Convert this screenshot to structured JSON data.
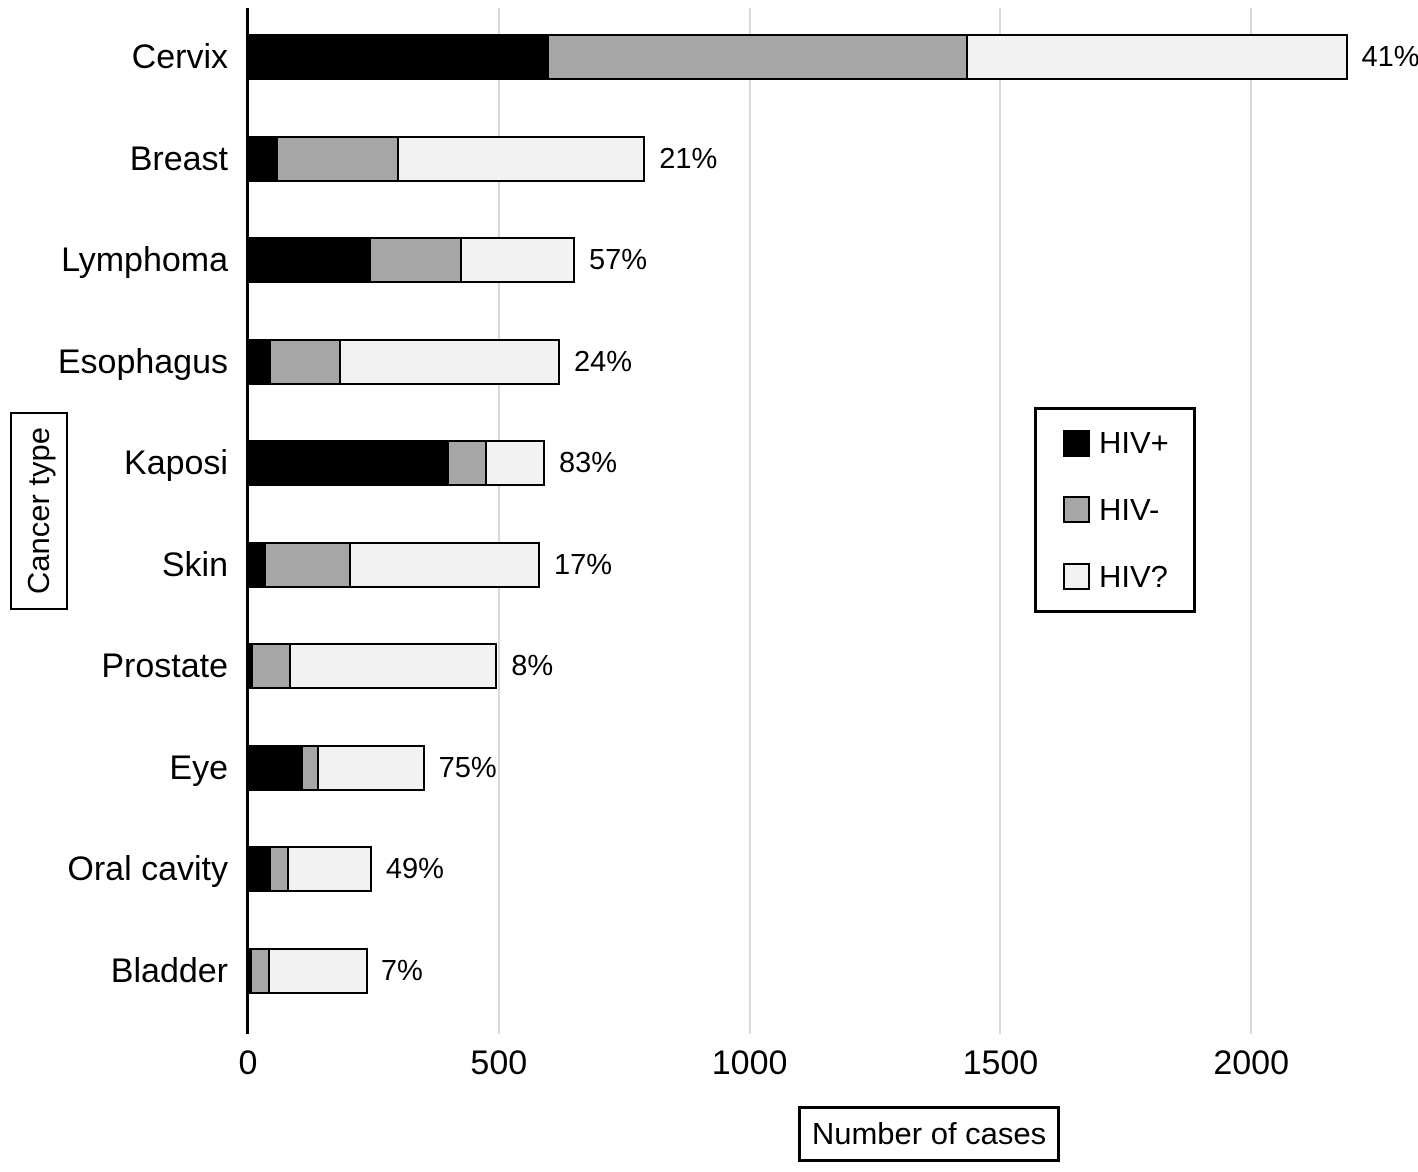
{
  "chart_data": {
    "type": "bar",
    "orientation": "horizontal",
    "xlabel": "Number of cases",
    "ylabel": "Cancer type",
    "categories": [
      "Cervix",
      "Breast",
      "Lymphoma",
      "Esophagus",
      "Kaposi",
      "Skin",
      "Prostate",
      "Eye",
      "Oral cavity",
      "Bladder"
    ],
    "series": [
      {
        "name": "HIV+",
        "color": "#000000",
        "values": [
          600,
          60,
          245,
          45,
          400,
          35,
          10,
          110,
          45,
          5
        ]
      },
      {
        "name": "HIV-",
        "color": "#a6a6a6",
        "values": [
          840,
          245,
          185,
          145,
          80,
          175,
          80,
          35,
          40,
          40
        ]
      },
      {
        "name": "HIV?",
        "color": "#f2f2f2",
        "values": [
          760,
          495,
          230,
          440,
          120,
          380,
          415,
          215,
          170,
          200
        ]
      }
    ],
    "bar_totals": [
      2200,
      800,
      660,
      630,
      600,
      590,
      505,
      360,
      255,
      245
    ],
    "bar_labels": [
      "41%",
      "21%",
      "57%",
      "24%",
      "83%",
      "17%",
      "8%",
      "75%",
      "49%",
      "7%"
    ],
    "x_ticks": [
      0,
      500,
      1000,
      1500,
      2000
    ],
    "xlim": [
      0,
      2330
    ],
    "grid": "vertical",
    "grid_color": "#d9d9d9",
    "axis_color": "#000000",
    "legend_position": "middle-right",
    "legend_labels": [
      "HIV+",
      "HIV-",
      "HIV?"
    ]
  }
}
